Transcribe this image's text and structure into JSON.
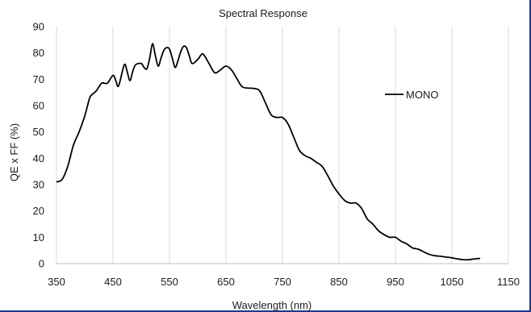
{
  "chart_data": {
    "type": "line",
    "title": "Spectral Response",
    "xlabel": "Wavelength (nm)",
    "ylabel": "QE x FF (%)",
    "xlim": [
      350,
      1150
    ],
    "ylim": [
      0,
      90
    ],
    "xticks": [
      350,
      450,
      550,
      650,
      750,
      850,
      950,
      1050,
      1150
    ],
    "yticks": [
      0,
      10,
      20,
      30,
      40,
      50,
      60,
      70,
      80,
      90
    ],
    "grid": "vertical",
    "legend_position": "right",
    "line_color": "#000000",
    "grid_color": "#d9d9d9",
    "series": [
      {
        "name": "MONO",
        "x": [
          350,
          360,
          370,
          380,
          390,
          400,
          405,
          410,
          420,
          430,
          440,
          450,
          455,
          460,
          470,
          475,
          480,
          485,
          490,
          500,
          505,
          510,
          515,
          520,
          525,
          530,
          535,
          540,
          545,
          550,
          555,
          560,
          565,
          570,
          575,
          580,
          585,
          590,
          600,
          605,
          610,
          620,
          630,
          640,
          650,
          660,
          670,
          680,
          700,
          710,
          720,
          730,
          740,
          750,
          760,
          770,
          780,
          790,
          800,
          810,
          820,
          830,
          840,
          850,
          860,
          870,
          880,
          890,
          900,
          910,
          920,
          930,
          940,
          950,
          960,
          970,
          980,
          990,
          1000,
          1010,
          1020,
          1030,
          1040,
          1050,
          1060,
          1070,
          1080,
          1090,
          1100
        ],
        "y": [
          31,
          32,
          37,
          45,
          50,
          56,
          60,
          63.5,
          65.5,
          68.5,
          68.5,
          71.5,
          69.5,
          67.5,
          75.5,
          73,
          69.5,
          73,
          75.5,
          76,
          74.5,
          74,
          78,
          83.5,
          79,
          75,
          78,
          81,
          82,
          81.5,
          78,
          74.5,
          77,
          80.5,
          82.5,
          82,
          79,
          76,
          77.5,
          79,
          79.5,
          76,
          72.5,
          73.5,
          75,
          73.5,
          70,
          67,
          66.5,
          65.5,
          61,
          56.5,
          55.5,
          55.5,
          53,
          48,
          43,
          41,
          40,
          38.5,
          37,
          33.5,
          29.5,
          26.5,
          24,
          23,
          23,
          21,
          17,
          15,
          12.5,
          11,
          10,
          10,
          8.5,
          7.5,
          6,
          5.5,
          4.5,
          3.5,
          3,
          2.8,
          2.5,
          2.2,
          1.8,
          1.5,
          1.5,
          1.8,
          2
        ]
      }
    ]
  }
}
